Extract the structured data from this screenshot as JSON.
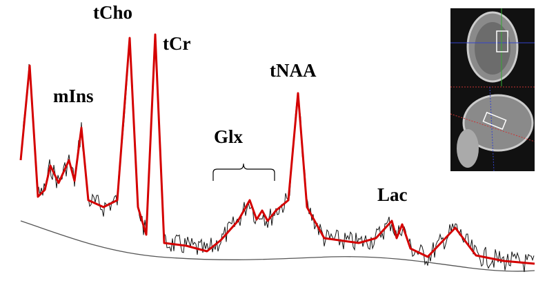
{
  "labels": {
    "tcho": "tCho",
    "tcr": "tCr",
    "mins": "mIns",
    "glx": "Glx",
    "tnaa": "tNAA",
    "lac": "Lac"
  }
}
